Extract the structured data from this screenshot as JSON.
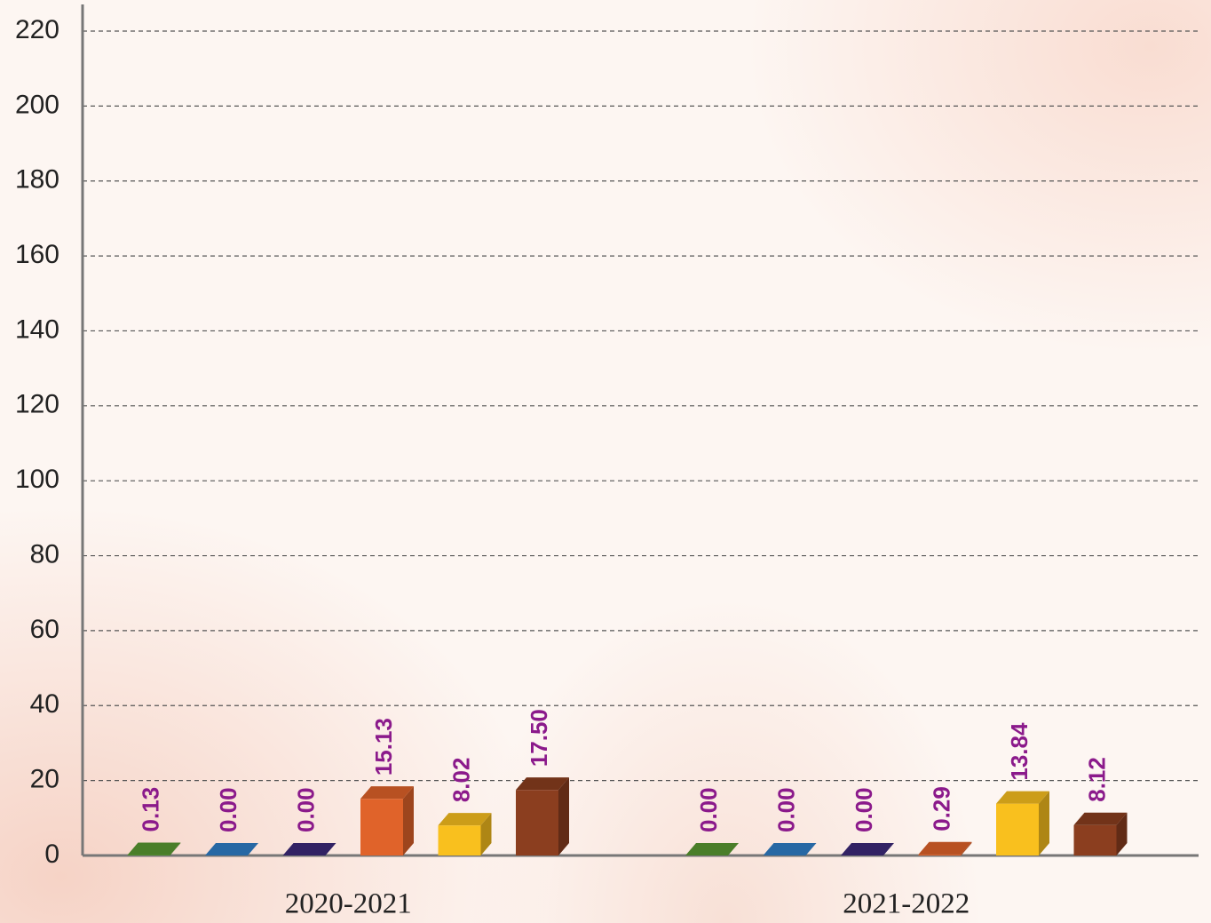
{
  "chart_data": {
    "type": "bar3d",
    "categories": [
      "2020-2021",
      "2021-2022"
    ],
    "series": [
      {
        "color": "#5a9a32",
        "values": [
          0.13,
          0.0
        ],
        "value_labels": [
          "0.13",
          "0.00"
        ]
      },
      {
        "color": "#2f7fc8",
        "values": [
          0.0,
          0.0
        ],
        "value_labels": [
          "0.00",
          "0.00"
        ]
      },
      {
        "color": "#3d2a7a",
        "values": [
          0.0,
          0.0
        ],
        "value_labels": [
          "0.00",
          "0.00"
        ]
      },
      {
        "color": "#e0632a",
        "values": [
          15.13,
          0.29
        ],
        "value_labels": [
          "15.13",
          "0.29"
        ]
      },
      {
        "color": "#f9c01e",
        "values": [
          8.02,
          13.84
        ],
        "value_labels": [
          "8.02",
          "13.84"
        ]
      },
      {
        "color": "#8b3e1f",
        "values": [
          17.5,
          8.12
        ],
        "value_labels": [
          "17.50",
          "8.12"
        ]
      }
    ],
    "ylim": [
      0,
      220
    ],
    "yticks": [
      0,
      20,
      40,
      60,
      80,
      100,
      120,
      140,
      160,
      180,
      200,
      220
    ],
    "grid": true,
    "label_color": "#8b1a8b"
  }
}
